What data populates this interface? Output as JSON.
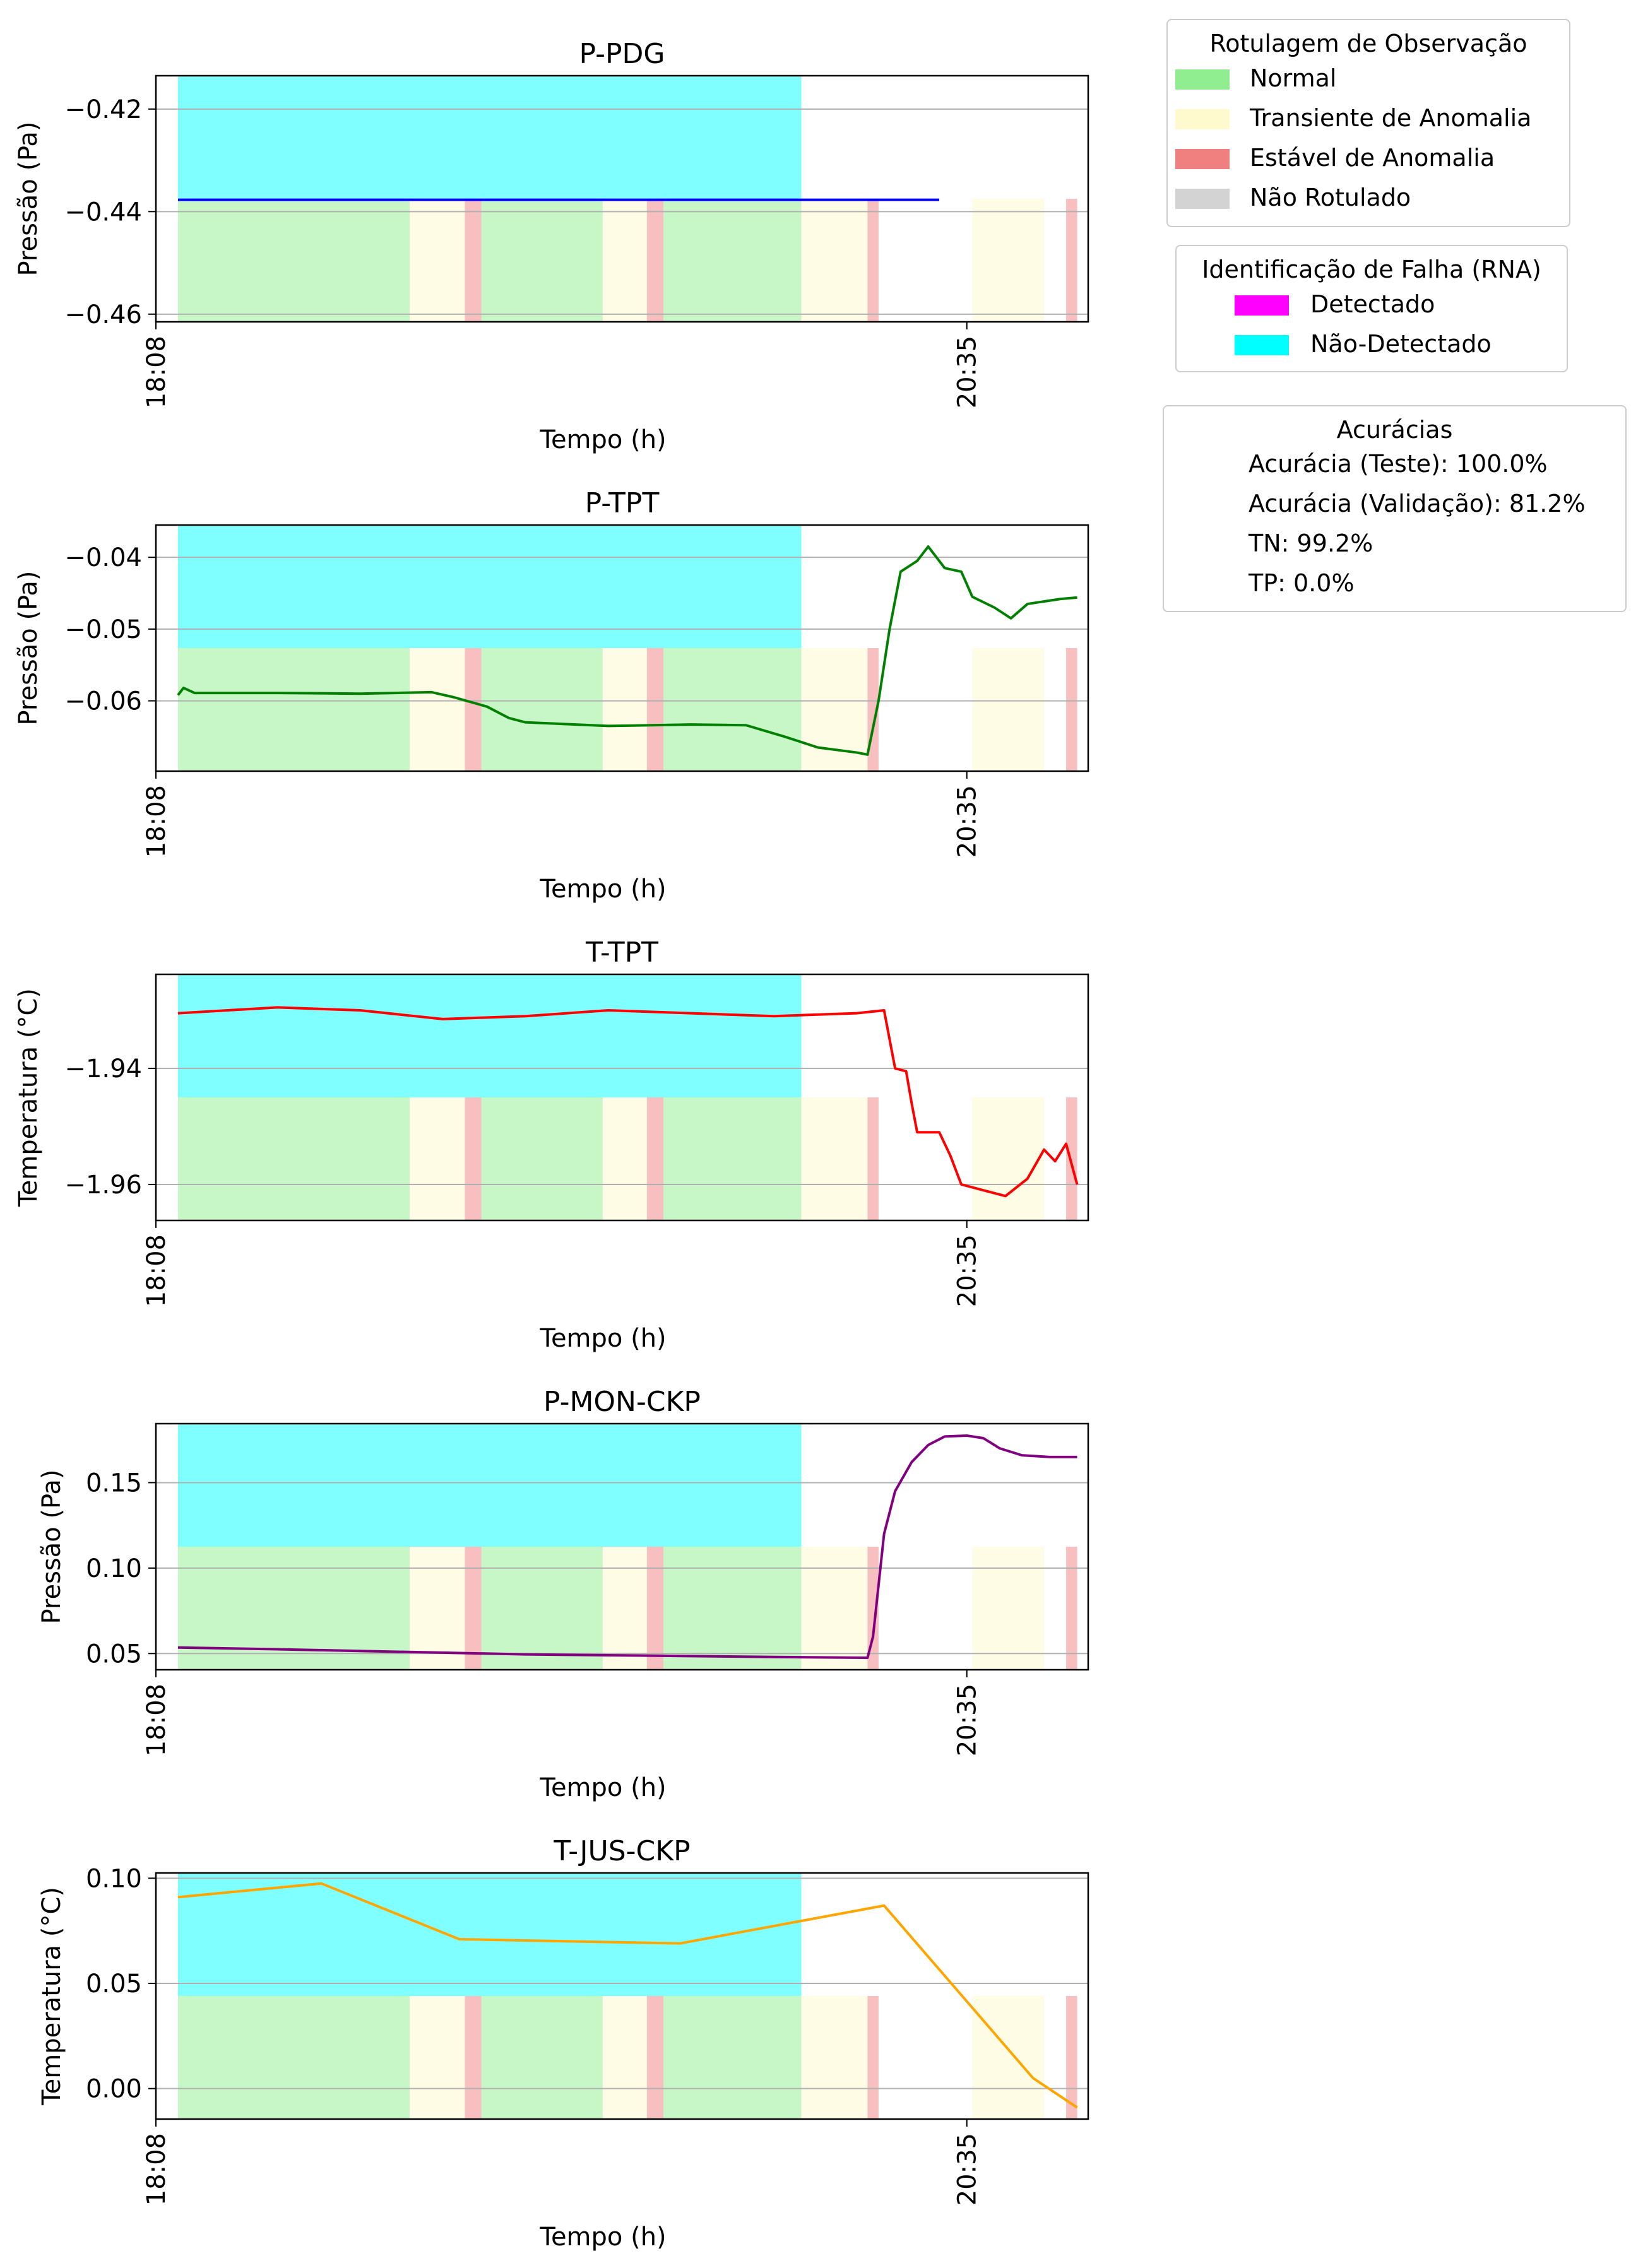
{
  "chart_data": [
    {
      "type": "line",
      "title": "P-PDG",
      "xlabel": "Tempo (h)",
      "ylabel": "Pressão (Pa)",
      "xticks": [
        "18:08",
        "20:35"
      ],
      "yticks": [
        -0.42,
        -0.44,
        -0.46
      ],
      "ylim": [
        -0.4615,
        -0.4135
      ],
      "grid": "horizontal",
      "series": [
        {
          "color": "#0000ff",
          "points": [
            [
              "18:12",
              -0.4377
            ],
            [
              "20:30",
              -0.4377
            ]
          ]
        }
      ]
    },
    {
      "type": "line",
      "title": "P-TPT",
      "xlabel": "Tempo (h)",
      "ylabel": "Pressão (Pa)",
      "xticks": [
        "18:08",
        "20:35"
      ],
      "yticks": [
        -0.04,
        -0.05,
        -0.06
      ],
      "ylim": [
        -0.0698,
        -0.0355
      ],
      "grid": "horizontal",
      "series": [
        {
          "color": "#008000",
          "points": [
            [
              "18:12",
              -0.0592
            ],
            [
              "18:13",
              -0.0582
            ],
            [
              "18:15",
              -0.0589
            ],
            [
              "18:30",
              -0.0589
            ],
            [
              "18:45",
              -0.059
            ],
            [
              "18:58",
              -0.0588
            ],
            [
              "19:02",
              -0.0595
            ],
            [
              "19:08",
              -0.0608
            ],
            [
              "19:12",
              -0.0624
            ],
            [
              "19:15",
              -0.063
            ],
            [
              "19:30",
              -0.0635
            ],
            [
              "19:45",
              -0.0633
            ],
            [
              "19:55",
              -0.0634
            ],
            [
              "20:02",
              -0.065
            ],
            [
              "20:08",
              -0.0665
            ],
            [
              "20:15",
              -0.0672
            ],
            [
              "20:17",
              -0.0675
            ],
            [
              "20:19",
              -0.06
            ],
            [
              "20:21",
              -0.05
            ],
            [
              "20:23",
              -0.042
            ],
            [
              "20:26",
              -0.0405
            ],
            [
              "20:28",
              -0.0385
            ],
            [
              "20:31",
              -0.0415
            ],
            [
              "20:34",
              -0.042
            ],
            [
              "20:36",
              -0.0455
            ],
            [
              "20:40",
              -0.047
            ],
            [
              "20:43",
              -0.0485
            ],
            [
              "20:46",
              -0.0465
            ],
            [
              "20:52",
              -0.0458
            ],
            [
              "20:55",
              -0.0456
            ]
          ]
        }
      ]
    },
    {
      "type": "line",
      "title": "T-TPT",
      "xlabel": "Tempo (h)",
      "ylabel": "Temperatura (°C)",
      "xticks": [
        "18:08",
        "20:35"
      ],
      "yticks": [
        -1.94,
        -1.96
      ],
      "ylim": [
        -1.9662,
        -1.9238
      ],
      "grid": "horizontal",
      "series": [
        {
          "color": "#ff0000",
          "points": [
            [
              "18:12",
              -1.9305
            ],
            [
              "18:30",
              -1.9295
            ],
            [
              "18:45",
              -1.93
            ],
            [
              "19:00",
              -1.9315
            ],
            [
              "19:15",
              -1.931
            ],
            [
              "19:30",
              -1.93
            ],
            [
              "19:45",
              -1.9305
            ],
            [
              "20:00",
              -1.931
            ],
            [
              "20:15",
              -1.9305
            ],
            [
              "20:20",
              -1.93
            ],
            [
              "20:22",
              -1.94
            ],
            [
              "20:24",
              -1.9405
            ],
            [
              "20:25",
              -1.946
            ],
            [
              "20:26",
              -1.951
            ],
            [
              "20:30",
              -1.951
            ],
            [
              "20:32",
              -1.955
            ],
            [
              "20:34",
              -1.96
            ],
            [
              "20:38",
              -1.961
            ],
            [
              "20:42",
              -1.962
            ],
            [
              "20:46",
              -1.959
            ],
            [
              "20:49",
              -1.954
            ],
            [
              "20:51",
              -1.956
            ],
            [
              "20:53",
              -1.953
            ],
            [
              "20:55",
              -1.96
            ]
          ]
        }
      ]
    },
    {
      "type": "line",
      "title": "P-MON-CKP",
      "xlabel": "Tempo (h)",
      "ylabel": "Pressão (Pa)",
      "xticks": [
        "18:08",
        "20:35"
      ],
      "yticks": [
        0.15,
        0.1,
        0.05
      ],
      "ylim": [
        0.0405,
        0.1845
      ],
      "grid": "horizontal",
      "series": [
        {
          "color": "#800080",
          "points": [
            [
              "18:12",
              0.0535
            ],
            [
              "18:30",
              0.0525
            ],
            [
              "18:45",
              0.0515
            ],
            [
              "19:00",
              0.0505
            ],
            [
              "19:15",
              0.0495
            ],
            [
              "19:30",
              0.049
            ],
            [
              "19:45",
              0.0485
            ],
            [
              "20:00",
              0.048
            ],
            [
              "20:17",
              0.0475
            ],
            [
              "20:18",
              0.06
            ],
            [
              "20:19",
              0.09
            ],
            [
              "20:20",
              0.12
            ],
            [
              "20:22",
              0.145
            ],
            [
              "20:25",
              0.162
            ],
            [
              "20:28",
              0.172
            ],
            [
              "20:31",
              0.177
            ],
            [
              "20:35",
              0.1775
            ],
            [
              "20:38",
              0.176
            ],
            [
              "20:41",
              0.17
            ],
            [
              "20:45",
              0.166
            ],
            [
              "20:50",
              0.165
            ],
            [
              "20:55",
              0.165
            ]
          ]
        }
      ]
    },
    {
      "type": "line",
      "title": "T-JUS-CKP",
      "xlabel": "Tempo (h)",
      "ylabel": "Temperatura (°C)",
      "xticks": [
        "18:08",
        "20:35"
      ],
      "yticks": [
        0.1,
        0.05,
        0.0
      ],
      "ylim": [
        -0.0145,
        0.1025
      ],
      "grid": "horizontal",
      "series": [
        {
          "color": "#ffa500",
          "points": [
            [
              "18:12",
              0.091
            ],
            [
              "18:38",
              0.0975
            ],
            [
              "19:03",
              0.071
            ],
            [
              "19:43",
              0.069
            ],
            [
              "20:20",
              0.087
            ],
            [
              "20:47",
              0.005
            ],
            [
              "20:55",
              -0.009
            ]
          ]
        }
      ]
    }
  ],
  "shading": {
    "alpha_bands": [
      {
        "label": "Normal",
        "color": "#90ee90",
        "start": "18:12",
        "end": "18:54"
      },
      {
        "label": "Transiente de Anomalia",
        "color": "#fffacd",
        "start": "18:54",
        "end": "19:04"
      },
      {
        "label": "Estável de Anomalia",
        "color": "#f08080",
        "start": "19:04",
        "end": "19:07"
      },
      {
        "label": "Normal",
        "color": "#90ee90",
        "start": "19:07",
        "end": "19:29"
      },
      {
        "label": "Transiente de Anomalia",
        "color": "#fffacd",
        "start": "19:29",
        "end": "19:37"
      },
      {
        "label": "Estável de Anomalia",
        "color": "#f08080",
        "start": "19:37",
        "end": "19:40"
      },
      {
        "label": "Normal",
        "color": "#90ee90",
        "start": "19:40",
        "end": "20:05"
      },
      {
        "label": "Transiente de Anomalia",
        "color": "#fffacd",
        "start": "20:05",
        "end": "20:17"
      },
      {
        "label": "Estável de Anomalia",
        "color": "#f08080",
        "start": "20:17",
        "end": "20:19"
      }
    ],
    "detection_bands": [
      {
        "label": "Não-Detectado",
        "color": "#00ffff",
        "start": "18:12",
        "end": "20:05"
      }
    ]
  },
  "legends": {
    "labeling": {
      "title": "Rotulagem de Observação",
      "items": [
        {
          "label": "Normal",
          "color": "#90ee90"
        },
        {
          "label": "Transiente de Anomalia",
          "color": "#fffacd"
        },
        {
          "label": "Estável de Anomalia",
          "color": "#f08080"
        },
        {
          "label": "Não Rotulado",
          "color": "#d3d3d3"
        }
      ]
    },
    "detection": {
      "title": "Identificação de Falha (RNA)",
      "items": [
        {
          "label": "Detectado",
          "color": "#ff00ff"
        },
        {
          "label": "Não-Detectado",
          "color": "#00ffff"
        }
      ]
    },
    "accuracy": {
      "title": "Acurácias",
      "items": [
        "Acurácia (Teste): 100.0%",
        "Acurácia (Validação): 81.2%",
        "TN: 99.2%",
        "TP: 0.0%"
      ]
    }
  }
}
